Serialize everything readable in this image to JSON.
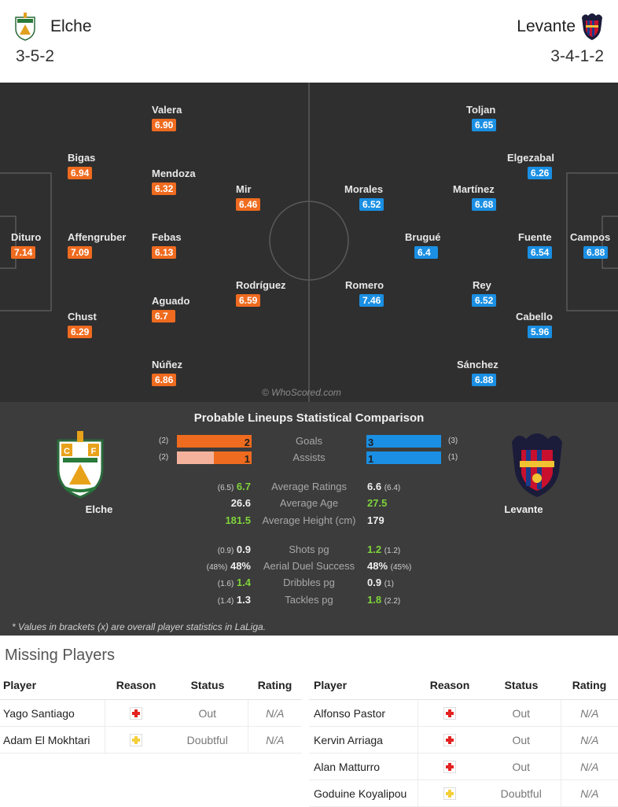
{
  "home": {
    "name": "Elche",
    "formation": "3-5-2",
    "crest_icon": "elche-crest-icon",
    "color": "#ef6b1f",
    "players": [
      {
        "name": "Dituro",
        "rating": "7.14"
      },
      {
        "name": "Bigas",
        "rating": "6.94"
      },
      {
        "name": "Affengruber",
        "rating": "7.09"
      },
      {
        "name": "Chust",
        "rating": "6.29"
      },
      {
        "name": "Valera",
        "rating": "6.90"
      },
      {
        "name": "Mendoza",
        "rating": "6.32"
      },
      {
        "name": "Febas",
        "rating": "6.13"
      },
      {
        "name": "Aguado",
        "rating": "6.7"
      },
      {
        "name": "Núñez",
        "rating": "6.86"
      },
      {
        "name": "Mir",
        "rating": "6.46"
      },
      {
        "name": "Rodríguez",
        "rating": "6.59"
      }
    ]
  },
  "away": {
    "name": "Levante",
    "formation": "3-4-1-2",
    "crest_icon": "levante-crest-icon",
    "color": "#1a8fe3",
    "players": [
      {
        "name": "Morales",
        "rating": "6.52"
      },
      {
        "name": "Romero",
        "rating": "7.46"
      },
      {
        "name": "Brugué",
        "rating": "6.4"
      },
      {
        "name": "Toljan",
        "rating": "6.65"
      },
      {
        "name": "Martínez",
        "rating": "6.68"
      },
      {
        "name": "Rey",
        "rating": "6.52"
      },
      {
        "name": "Sánchez",
        "rating": "6.88"
      },
      {
        "name": "Elgezabal",
        "rating": "6.26"
      },
      {
        "name": "Fuente",
        "rating": "6.54"
      },
      {
        "name": "Cabello",
        "rating": "5.96"
      },
      {
        "name": "Campos",
        "rating": "6.88"
      }
    ]
  },
  "watermark": "© WhoScored.com",
  "comparison": {
    "title": "Probable Lineups Statistical Comparison",
    "home_team": "Elche",
    "away_team": "Levante",
    "bars": [
      {
        "label": "Goals",
        "home": 2,
        "home_overall": "(2)",
        "away": 3,
        "away_overall": "(3)",
        "home_fill": 1.0,
        "away_fill": 1.0
      },
      {
        "label": "Assists",
        "home": 1,
        "home_overall": "(2)",
        "away": 1,
        "away_overall": "(1)",
        "home_fill": 0.5,
        "away_fill": 1.0
      }
    ],
    "group1": [
      {
        "label": "Average Ratings",
        "home": "6.7",
        "home_overall": "(6.5)",
        "away": "6.6",
        "away_overall": "(6.4)",
        "better": "home"
      },
      {
        "label": "Average Age",
        "home": "26.6",
        "home_overall": "",
        "away": "27.5",
        "away_overall": "",
        "better": "away"
      },
      {
        "label": "Average Height (cm)",
        "home": "181.5",
        "home_overall": "",
        "away": "179",
        "away_overall": "",
        "better": "home"
      }
    ],
    "group2": [
      {
        "label": "Shots pg",
        "home": "0.9",
        "home_overall": "(0.9)",
        "away": "1.2",
        "away_overall": "(1.2)",
        "better": "away"
      },
      {
        "label": "Aerial Duel Success",
        "home": "48%",
        "home_overall": "(48%)",
        "away": "48%",
        "away_overall": "(45%)",
        "better": "none"
      },
      {
        "label": "Dribbles pg",
        "home": "1.4",
        "home_overall": "(1.6)",
        "away": "0.9",
        "away_overall": "(1)",
        "better": "home"
      },
      {
        "label": "Tackles pg",
        "home": "1.3",
        "home_overall": "(1.4)",
        "away": "1.8",
        "away_overall": "(2.2)",
        "better": "away"
      }
    ],
    "footnote": "* Values in brackets (x) are overall player statistics in LaLiga."
  },
  "missing": {
    "title": "Missing Players",
    "headers": {
      "player": "Player",
      "reason": "Reason",
      "status": "Status",
      "rating": "Rating"
    },
    "home": [
      {
        "player": "Yago Santiago",
        "reason_icon": "injury-icon",
        "status": "Out",
        "rating": "N/A"
      },
      {
        "player": "Adam El Mokhtari",
        "reason_icon": "doubtful-icon",
        "status": "Doubtful",
        "rating": "N/A"
      }
    ],
    "away": [
      {
        "player": "Alfonso Pastor",
        "reason_icon": "injury-icon",
        "status": "Out",
        "rating": "N/A"
      },
      {
        "player": "Kervin Arriaga",
        "reason_icon": "injury-icon",
        "status": "Out",
        "rating": "N/A"
      },
      {
        "player": "Alan Matturro",
        "reason_icon": "injury-icon",
        "status": "Out",
        "rating": "N/A"
      },
      {
        "player": "Goduine Koyalipou",
        "reason_icon": "doubtful-icon",
        "status": "Doubtful",
        "rating": "N/A"
      }
    ]
  }
}
